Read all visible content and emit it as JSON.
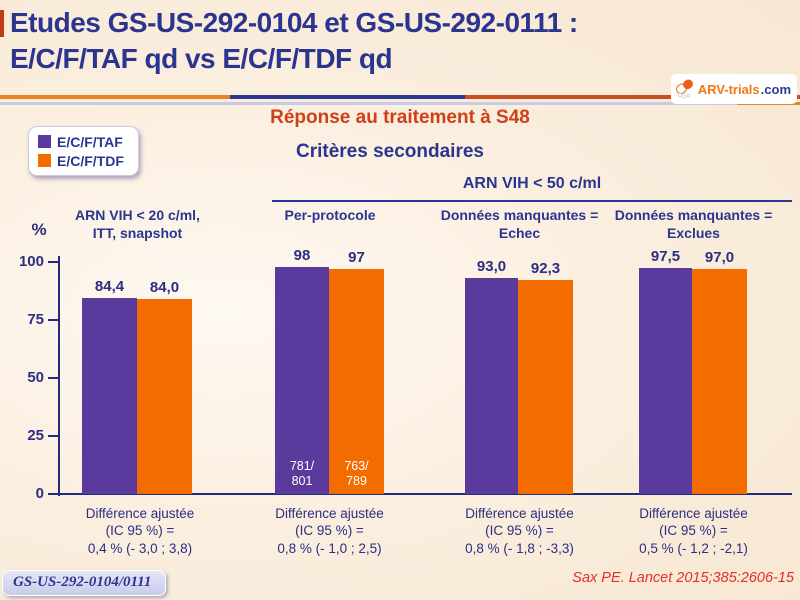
{
  "header": {
    "title_line1": "Etudes GS-US-292-0104 et GS-US-292-0111 :",
    "title_line2": "E/C/F/TAF qd vs E/C/F/TDF qd",
    "logo_brand": "ARV-trials",
    "logo_tld": ".com"
  },
  "subtitle": "Réponse au traitement à S48",
  "section_heading": "Critères secondaires",
  "legend": {
    "taf_label": "E/C/F/TAF",
    "tdf_label": "E/C/F/TDF"
  },
  "colors": {
    "taf_purple": "#5B3A9E",
    "tdf_orange": "#F26C00",
    "heading_blue": "#2B3590",
    "subtitle_red": "#D04018",
    "axis_navy": "#232B7C",
    "citation_red": "#E0312A"
  },
  "chart_data": {
    "type": "bar",
    "ylabel": "%",
    "ylim": [
      0,
      100
    ],
    "yticks": [
      "100",
      "75",
      "50",
      "25",
      "0"
    ],
    "series": [
      "E/C/F/TAF",
      "E/C/F/TDF"
    ],
    "span_header": "ARN VIH < 50 c/ml",
    "groups": [
      {
        "header": "ARN VIH < 20 c/ml,\nITT, snapshot",
        "values": [
          84.4,
          84.0
        ],
        "value_labels": [
          "84,4",
          "84,0"
        ],
        "caption": "Différence ajustée\n(IC 95 %) =\n0,4 % (- 3,0 ; 3,8)"
      },
      {
        "header": "Per-protocole",
        "values": [
          98,
          97
        ],
        "value_labels": [
          "98",
          "97"
        ],
        "inner_labels": [
          "781/\n801",
          "763/\n789"
        ],
        "caption": "Différence ajustée\n(IC 95 %) =\n0,8 % (- 1,0 ; 2,5)"
      },
      {
        "header": "Données manquantes =\nEchec",
        "values": [
          93.0,
          92.3
        ],
        "value_labels": [
          "93,0",
          "92,3"
        ],
        "caption": "Différence ajustée\n(IC 95 %) =\n0,8 % (- 1,8 ; -3,3)"
      },
      {
        "header": "Données manquantes =\nExclues",
        "values": [
          97.5,
          97.0
        ],
        "value_labels": [
          "97,5",
          "97,0"
        ],
        "caption": "Différence ajustée\n(IC 95 %) =\n0,5 % (- 1,2 ; -2,1)"
      }
    ]
  },
  "footer": {
    "study_badge": "GS-US-292-0104/0111",
    "citation": "Sax PE. Lancet 2015;385:2606-15"
  }
}
